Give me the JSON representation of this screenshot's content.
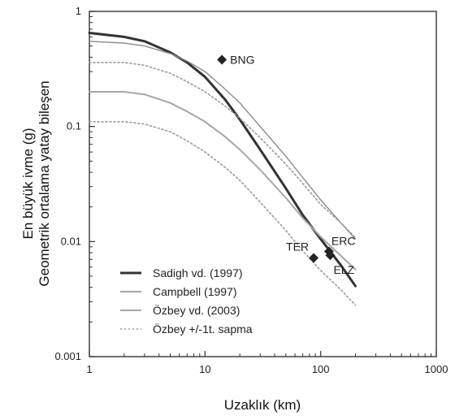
{
  "chart_data": {
    "type": "line",
    "xlabel": "Uzaklık (km)",
    "ylabel": [
      "En büyük ivme (g)",
      "Geometrik ortalama yatay bileşen"
    ],
    "x_scale": "log",
    "y_scale": "log",
    "xlim": [
      1,
      1000
    ],
    "ylim": [
      0.001,
      1
    ],
    "x_ticks": [
      {
        "value": 1,
        "label": "1"
      },
      {
        "value": 10,
        "label": "10"
      },
      {
        "value": 100,
        "label": "100"
      },
      {
        "value": 1000,
        "label": "1000"
      }
    ],
    "y_ticks": [
      {
        "value": 1,
        "label": "1"
      },
      {
        "value": 0.1,
        "label": "0.1"
      },
      {
        "value": 0.01,
        "label": "0.01"
      },
      {
        "value": 0.001,
        "label": "0.001"
      }
    ],
    "series": [
      {
        "name": "Sadigh vd. (1997)",
        "style": "thick-dark",
        "color": "#333333",
        "x": [
          1,
          2,
          3,
          5,
          7,
          10,
          15,
          20,
          30,
          50,
          70,
          100,
          150,
          200
        ],
        "y": [
          0.65,
          0.6,
          0.55,
          0.44,
          0.36,
          0.27,
          0.17,
          0.115,
          0.063,
          0.029,
          0.017,
          0.0105,
          0.0062,
          0.0041
        ]
      },
      {
        "name": "Campbell (1997)",
        "style": "thin-gray",
        "color": "#8a8a8a",
        "x": [
          1,
          2,
          3,
          5,
          7,
          10,
          15,
          20,
          30,
          50,
          70,
          100,
          150,
          200
        ],
        "y": [
          0.55,
          0.53,
          0.5,
          0.43,
          0.37,
          0.3,
          0.21,
          0.16,
          0.1,
          0.055,
          0.036,
          0.023,
          0.0145,
          0.0105
        ]
      },
      {
        "name": "Özbey vd. (2003)",
        "style": "mid-gray",
        "color": "#a6a6a6",
        "x": [
          1,
          2,
          3,
          5,
          7,
          10,
          15,
          20,
          30,
          50,
          70,
          100,
          150,
          200
        ],
        "y": [
          0.2,
          0.2,
          0.19,
          0.16,
          0.135,
          0.11,
          0.081,
          0.063,
          0.042,
          0.024,
          0.016,
          0.011,
          0.0075,
          0.0057
        ]
      },
      {
        "name": "Özbey +/-1t. sapma",
        "style": "dotted-gray",
        "color": "#9a9a9a",
        "x": [
          1,
          2,
          3,
          5,
          7,
          10,
          15,
          20,
          30,
          50,
          70,
          100,
          150,
          200
        ],
        "y": [
          0.36,
          0.36,
          0.34,
          0.29,
          0.245,
          0.2,
          0.15,
          0.118,
          0.08,
          0.047,
          0.032,
          0.021,
          0.0145,
          0.0108
        ]
      },
      {
        "name": "Özbey +/-1t. sapma",
        "style": "dotted-gray",
        "color": "#9a9a9a",
        "show_in_legend": false,
        "x": [
          1,
          2,
          3,
          5,
          7,
          10,
          15,
          20,
          30,
          50,
          70,
          100,
          150,
          200
        ],
        "y": [
          0.11,
          0.11,
          0.105,
          0.09,
          0.075,
          0.06,
          0.044,
          0.034,
          0.022,
          0.0125,
          0.0083,
          0.0056,
          0.0038,
          0.0028
        ]
      }
    ],
    "stations": [
      {
        "label": "BNG",
        "x": 14,
        "y": 0.38,
        "label_side": "right"
      },
      {
        "label": "TER",
        "x": 87,
        "y": 0.0072,
        "label_side": "above-left"
      },
      {
        "label": "ERC",
        "x": 118,
        "y": 0.0082,
        "label_side": "above-right"
      },
      {
        "label": "ELZ",
        "x": 121,
        "y": 0.0076,
        "label_side": "below-right"
      }
    ],
    "legend_position": "lower-left",
    "grid": false
  }
}
